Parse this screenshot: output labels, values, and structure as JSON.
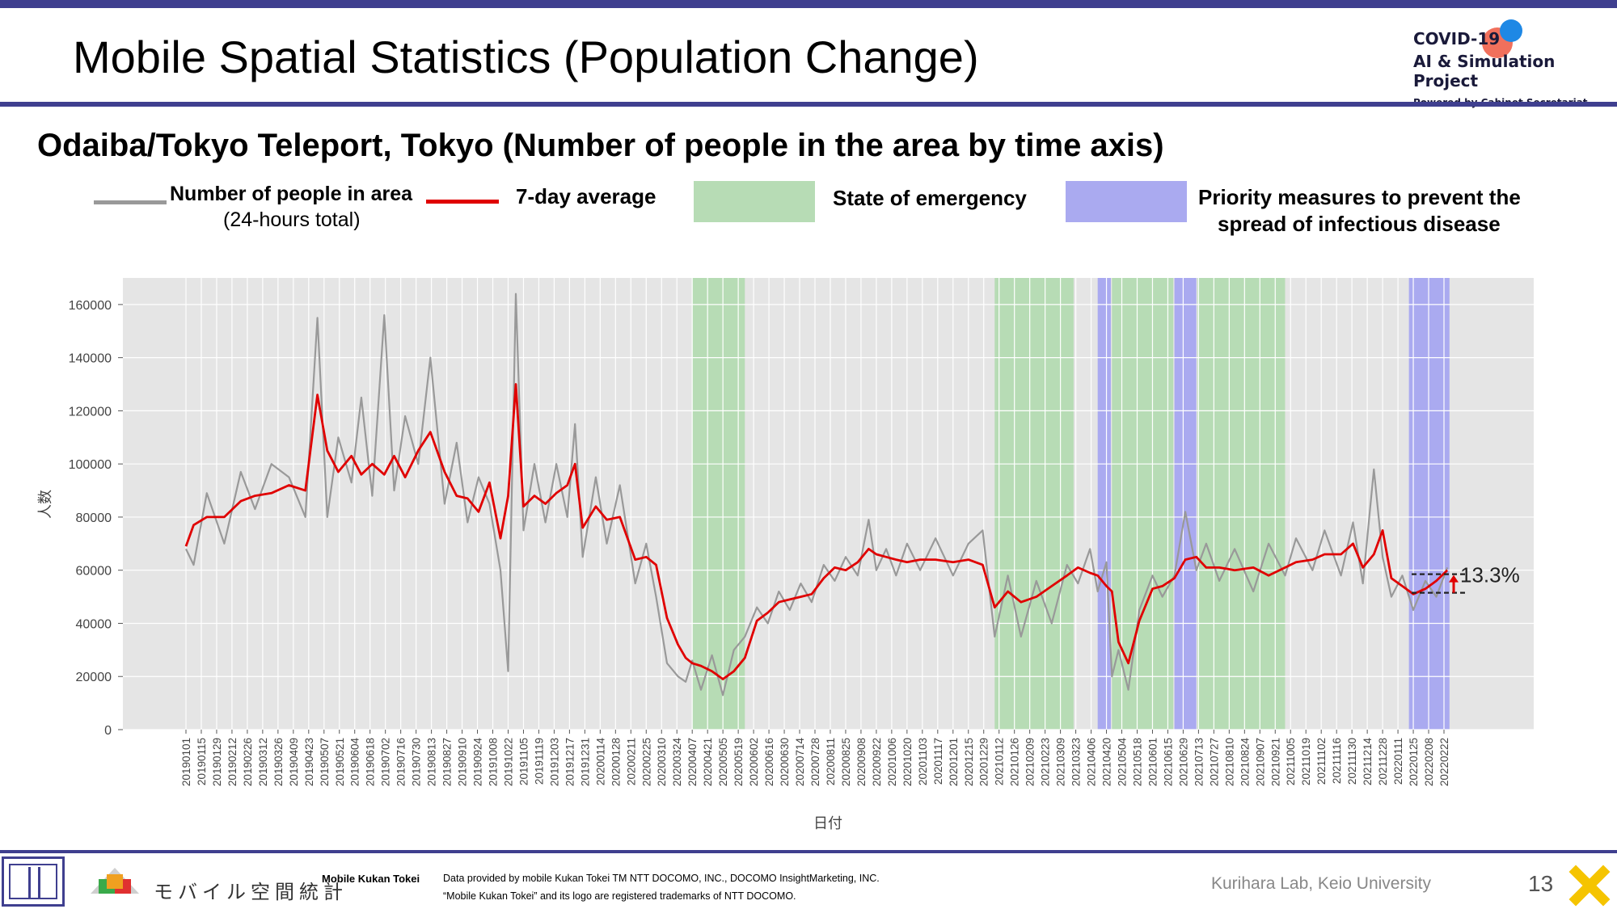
{
  "header": {
    "title": "Mobile Spatial Statistics (Population Change)",
    "brand_line1": "COVID-19",
    "brand_line2": "AI & Simulation Project",
    "brand_line3": "Powered by Cabinet Secretariat"
  },
  "subtitle": "Odaiba/Tokyo Teleport, Tokyo (Number of people in the area by time axis)",
  "legend": {
    "raw_label": "Number of people in area",
    "raw_sub": "(24-hours total)",
    "avg_label": "7-day average",
    "emergency_label": "State of emergency",
    "priority_label_1": "Priority measures to prevent the",
    "priority_label_2": "spread of infectious disease"
  },
  "colors": {
    "raw": "#999999",
    "avg": "#e00000",
    "emergency": "#b7dcb5",
    "priority": "#aaaaf0",
    "brand_bar": "#3f3f8f"
  },
  "chart_data": {
    "type": "line",
    "xlabel": "日付",
    "ylabel": "人数",
    "ylim": [
      0,
      170000
    ],
    "yticks": [
      0,
      20000,
      40000,
      60000,
      80000,
      100000,
      120000,
      140000,
      160000
    ],
    "grid": true,
    "x_tick_labels": [
      "20190101",
      "20190115",
      "20190129",
      "20190212",
      "20190226",
      "20190312",
      "20190326",
      "20190409",
      "20190423",
      "20190507",
      "20190521",
      "20190604",
      "20190618",
      "20190702",
      "20190716",
      "20190730",
      "20190813",
      "20190827",
      "20190910",
      "20190924",
      "20191008",
      "20191022",
      "20191105",
      "20191119",
      "20191203",
      "20191217",
      "20191231",
      "20200114",
      "20200128",
      "20200211",
      "20200225",
      "20200310",
      "20200324",
      "20200407",
      "20200421",
      "20200505",
      "20200519",
      "20200602",
      "20200616",
      "20200630",
      "20200714",
      "20200728",
      "20200811",
      "20200825",
      "20200908",
      "20200922",
      "20201006",
      "20201020",
      "20201103",
      "20201117",
      "20201201",
      "20201215",
      "20201229",
      "20210112",
      "20210126",
      "20210209",
      "20210223",
      "20210309",
      "20210323",
      "20210406",
      "20210420",
      "20210504",
      "20210518",
      "20210601",
      "20210615",
      "20210629",
      "20210713",
      "20210727",
      "20210810",
      "20210824",
      "20210907",
      "20210921",
      "20211005",
      "20211019",
      "20211102",
      "20211116",
      "20211130",
      "20211214",
      "20211228",
      "20220111",
      "20220125",
      "20220208",
      "20220222"
    ],
    "shaded_periods": [
      {
        "kind": "emergency",
        "start": "2020-04-07",
        "end": "2020-05-25"
      },
      {
        "kind": "emergency",
        "start": "2021-01-08",
        "end": "2021-03-21"
      },
      {
        "kind": "priority",
        "start": "2021-04-12",
        "end": "2021-04-24"
      },
      {
        "kind": "emergency",
        "start": "2021-04-25",
        "end": "2021-06-20"
      },
      {
        "kind": "priority",
        "start": "2021-06-21",
        "end": "2021-07-11"
      },
      {
        "kind": "emergency",
        "start": "2021-07-12",
        "end": "2021-09-30"
      },
      {
        "kind": "priority",
        "start": "2022-01-21",
        "end": "2022-02-27"
      }
    ],
    "series": [
      {
        "name": "7-day average",
        "x": [
          "2019-01-01",
          "2019-01-08",
          "2019-01-20",
          "2019-02-05",
          "2019-02-20",
          "2019-03-05",
          "2019-03-20",
          "2019-04-05",
          "2019-04-20",
          "2019-05-01",
          "2019-05-10",
          "2019-05-20",
          "2019-06-01",
          "2019-06-10",
          "2019-06-20",
          "2019-07-01",
          "2019-07-10",
          "2019-07-20",
          "2019-08-01",
          "2019-08-12",
          "2019-08-25",
          "2019-09-05",
          "2019-09-15",
          "2019-09-25",
          "2019-10-05",
          "2019-10-15",
          "2019-10-22",
          "2019-10-29",
          "2019-11-05",
          "2019-11-15",
          "2019-11-25",
          "2019-12-05",
          "2019-12-15",
          "2019-12-22",
          "2019-12-29",
          "2020-01-10",
          "2020-01-20",
          "2020-02-01",
          "2020-02-15",
          "2020-02-25",
          "2020-03-05",
          "2020-03-15",
          "2020-03-25",
          "2020-04-01",
          "2020-04-07",
          "2020-04-15",
          "2020-04-25",
          "2020-05-05",
          "2020-05-15",
          "2020-05-25",
          "2020-06-05",
          "2020-06-15",
          "2020-06-25",
          "2020-07-05",
          "2020-07-15",
          "2020-07-25",
          "2020-08-05",
          "2020-08-15",
          "2020-08-25",
          "2020-09-05",
          "2020-09-15",
          "2020-09-22",
          "2020-10-01",
          "2020-10-10",
          "2020-10-20",
          "2020-11-01",
          "2020-11-15",
          "2020-12-01",
          "2020-12-15",
          "2020-12-28",
          "2021-01-08",
          "2021-01-20",
          "2021-02-01",
          "2021-02-15",
          "2021-03-01",
          "2021-03-15",
          "2021-03-25",
          "2021-04-05",
          "2021-04-12",
          "2021-04-20",
          "2021-04-25",
          "2021-05-01",
          "2021-05-10",
          "2021-05-20",
          "2021-06-01",
          "2021-06-10",
          "2021-06-21",
          "2021-07-01",
          "2021-07-11",
          "2021-07-20",
          "2021-08-01",
          "2021-08-15",
          "2021-09-01",
          "2021-09-15",
          "2021-09-30",
          "2021-10-10",
          "2021-10-25",
          "2021-11-05",
          "2021-11-20",
          "2021-12-01",
          "2021-12-10",
          "2021-12-20",
          "2021-12-28",
          "2022-01-05",
          "2022-01-15",
          "2022-01-25",
          "2022-02-05",
          "2022-02-15",
          "2022-02-25"
        ],
        "y": [
          69000,
          77000,
          80000,
          80000,
          86000,
          88000,
          89000,
          92000,
          90000,
          126000,
          105000,
          97000,
          103000,
          96000,
          100000,
          96000,
          103000,
          95000,
          105000,
          112000,
          97000,
          88000,
          87000,
          82000,
          93000,
          72000,
          88000,
          130000,
          84000,
          88000,
          85000,
          89000,
          92000,
          100000,
          76000,
          84000,
          79000,
          80000,
          64000,
          65000,
          62000,
          42000,
          32000,
          27000,
          25000,
          24000,
          22000,
          19000,
          22000,
          27000,
          41000,
          44000,
          48000,
          49000,
          50000,
          51000,
          57000,
          61000,
          60000,
          63000,
          68000,
          66000,
          65000,
          64000,
          63000,
          64000,
          64000,
          63000,
          64000,
          62000,
          46000,
          52000,
          48000,
          50000,
          54000,
          58000,
          61000,
          59000,
          58000,
          54000,
          52000,
          33000,
          25000,
          41000,
          53000,
          54000,
          57000,
          64000,
          65000,
          61000,
          61000,
          60000,
          61000,
          58000,
          61000,
          63000,
          64000,
          66000,
          66000,
          70000,
          61000,
          66000,
          75000,
          57000,
          54000,
          51000,
          53000,
          56000,
          60000
        ]
      },
      {
        "name": "Number of people in area",
        "x": [
          "2019-01-01",
          "2019-01-08",
          "2019-01-20",
          "2019-02-05",
          "2019-02-20",
          "2019-03-05",
          "2019-03-20",
          "2019-04-05",
          "2019-04-20",
          "2019-05-01",
          "2019-05-10",
          "2019-05-20",
          "2019-06-01",
          "2019-06-10",
          "2019-06-20",
          "2019-07-01",
          "2019-07-10",
          "2019-07-20",
          "2019-08-01",
          "2019-08-12",
          "2019-08-25",
          "2019-09-05",
          "2019-09-15",
          "2019-09-25",
          "2019-10-05",
          "2019-10-15",
          "2019-10-22",
          "2019-10-29",
          "2019-11-05",
          "2019-11-15",
          "2019-11-25",
          "2019-12-05",
          "2019-12-15",
          "2019-12-22",
          "2019-12-29",
          "2020-01-10",
          "2020-01-20",
          "2020-02-01",
          "2020-02-15",
          "2020-02-25",
          "2020-03-05",
          "2020-03-15",
          "2020-03-25",
          "2020-04-01",
          "2020-04-07",
          "2020-04-15",
          "2020-04-25",
          "2020-05-05",
          "2020-05-15",
          "2020-05-25",
          "2020-06-05",
          "2020-06-15",
          "2020-06-25",
          "2020-07-05",
          "2020-07-15",
          "2020-07-25",
          "2020-08-05",
          "2020-08-15",
          "2020-08-25",
          "2020-09-05",
          "2020-09-15",
          "2020-09-22",
          "2020-10-01",
          "2020-10-10",
          "2020-10-20",
          "2020-11-01",
          "2020-11-15",
          "2020-12-01",
          "2020-12-15",
          "2020-12-28",
          "2021-01-08",
          "2021-01-20",
          "2021-02-01",
          "2021-02-15",
          "2021-03-01",
          "2021-03-15",
          "2021-03-25",
          "2021-04-05",
          "2021-04-12",
          "2021-04-20",
          "2021-04-25",
          "2021-05-01",
          "2021-05-10",
          "2021-05-20",
          "2021-06-01",
          "2021-06-10",
          "2021-06-21",
          "2021-07-01",
          "2021-07-11",
          "2021-07-20",
          "2021-08-01",
          "2021-08-15",
          "2021-09-01",
          "2021-09-15",
          "2021-09-30",
          "2021-10-10",
          "2021-10-25",
          "2021-11-05",
          "2021-11-20",
          "2021-12-01",
          "2021-12-10",
          "2021-12-20",
          "2021-12-28",
          "2022-01-05",
          "2022-01-15",
          "2022-01-25",
          "2022-02-05",
          "2022-02-15",
          "2022-02-25"
        ],
        "y": [
          68000,
          62000,
          89000,
          70000,
          97000,
          83000,
          100000,
          95000,
          80000,
          155000,
          80000,
          110000,
          93000,
          125000,
          88000,
          156000,
          90000,
          118000,
          100000,
          140000,
          85000,
          108000,
          78000,
          95000,
          85000,
          60000,
          22000,
          164000,
          75000,
          100000,
          78000,
          100000,
          80000,
          115000,
          65000,
          95000,
          70000,
          92000,
          55000,
          70000,
          50000,
          25000,
          20000,
          18000,
          26000,
          15000,
          28000,
          13000,
          30000,
          35000,
          46000,
          40000,
          52000,
          45000,
          55000,
          48000,
          62000,
          56000,
          65000,
          58000,
          79000,
          60000,
          68000,
          58000,
          70000,
          60000,
          72000,
          58000,
          70000,
          75000,
          35000,
          58000,
          35000,
          56000,
          40000,
          62000,
          55000,
          68000,
          52000,
          63000,
          20000,
          30000,
          15000,
          45000,
          58000,
          50000,
          58000,
          82000,
          60000,
          70000,
          56000,
          68000,
          52000,
          70000,
          58000,
          72000,
          60000,
          75000,
          58000,
          78000,
          55000,
          98000,
          65000,
          50000,
          58000,
          45000,
          56000,
          50000,
          61000
        ]
      }
    ],
    "annotation": "13.3%"
  },
  "footer": {
    "logo_text": "モバイル空間統計",
    "product": "Mobile Kukan Tokei",
    "credit1": "Data provided by mobile Kukan Tokei TM NTT DOCOMO, INC., DOCOMO InsightMarketing, INC.",
    "credit2": "“Mobile Kukan Tokei” and its logo are registered trademarks of NTT DOCOMO.",
    "lab": "Kurihara Lab, Keio University",
    "page": "13"
  }
}
